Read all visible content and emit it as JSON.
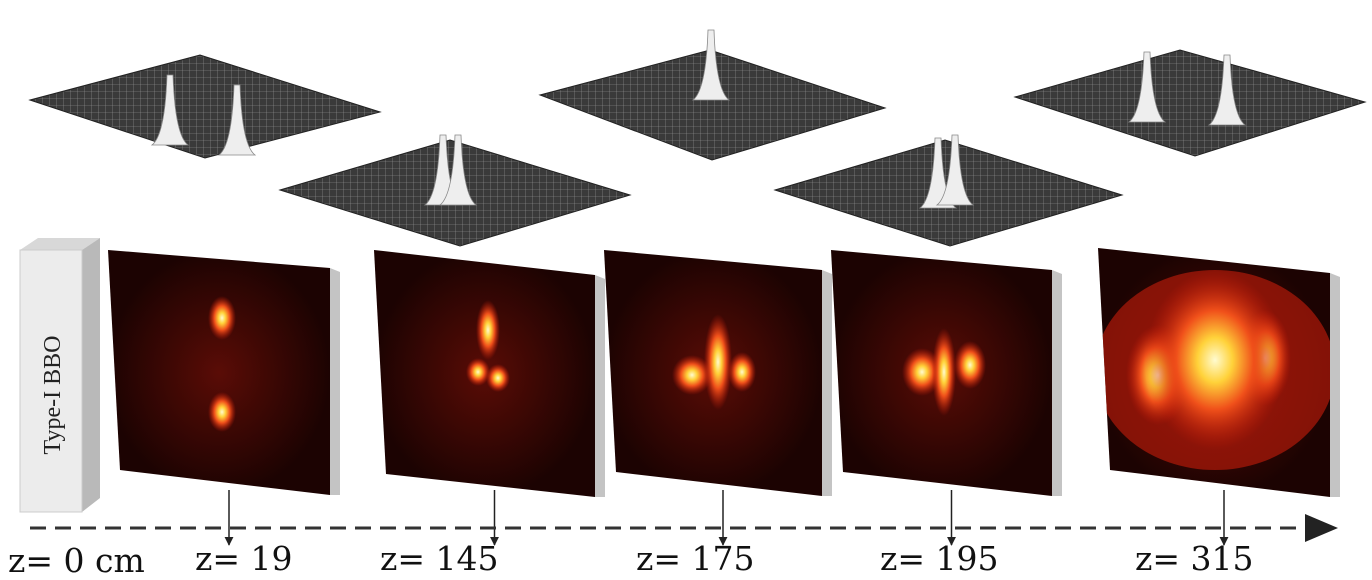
{
  "crystal": {
    "label": "Type-I BBO"
  },
  "axis": {
    "origin_label": "z= 0 cm"
  },
  "planes": [
    {
      "label": "z= 19"
    },
    {
      "label": "z= 145"
    },
    {
      "label": "z= 175"
    },
    {
      "label": "z= 195"
    },
    {
      "label": "z= 315"
    }
  ]
}
